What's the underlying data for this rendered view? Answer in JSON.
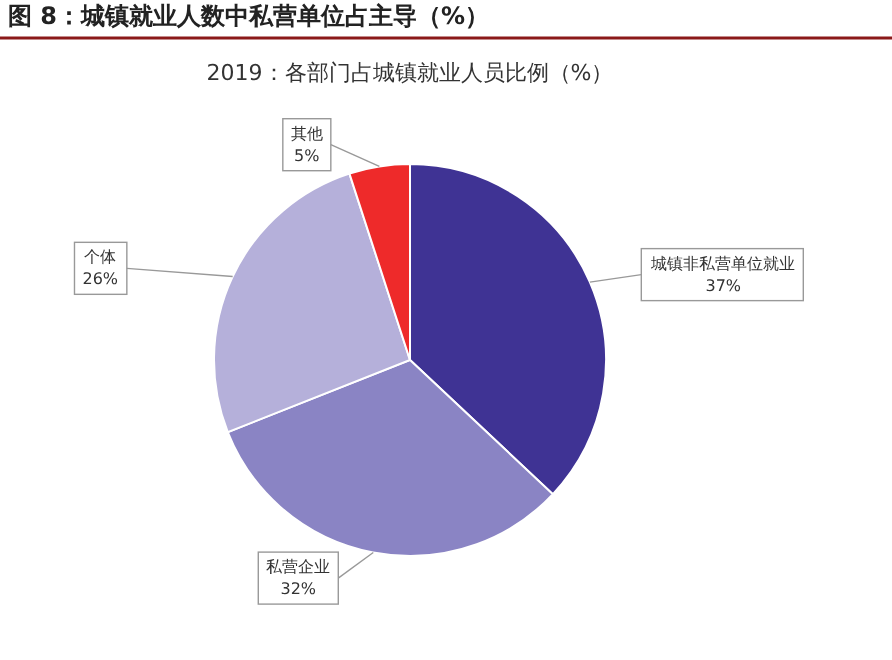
{
  "chart_data": {
    "type": "pie",
    "title": "图 8：城镇就业人数中私营单位占主导（%）",
    "subtitle": "2019：各部门占城镇就业人员比例（%）",
    "categories": [
      "城镇非私营单位就业",
      "私营企业",
      "个体",
      "其他"
    ],
    "values": [
      37,
      32,
      26,
      5
    ],
    "colors": [
      "#3f3394",
      "#8a84c4",
      "#b5b0da",
      "#ee2a2a"
    ],
    "value_labels": [
      "37%",
      "32%",
      "26%",
      "5%"
    ]
  }
}
